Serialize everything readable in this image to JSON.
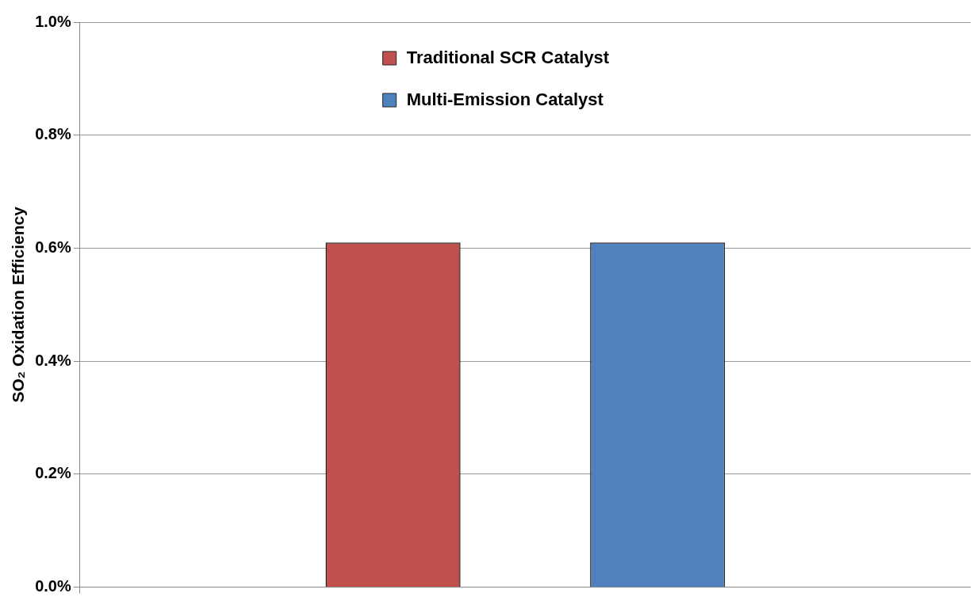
{
  "chart_data": {
    "type": "bar",
    "ylabel": "SO₂ Oxidation Efficiency",
    "categories": [
      null
    ],
    "series": [
      {
        "name": "Traditional SCR Catalyst",
        "color": "#c0504d",
        "values": [
          0.61
        ]
      },
      {
        "name": "Multi-Emission Catalyst",
        "color": "#4f81bd",
        "values": [
          0.61
        ]
      }
    ],
    "ylim": [
      0,
      1
    ],
    "yticks": [
      {
        "value": 0,
        "label": "0.0%"
      },
      {
        "value": 0.2,
        "label": "0.2%"
      },
      {
        "value": 0.4,
        "label": "0.4%"
      },
      {
        "value": 0.6,
        "label": "0.6%"
      },
      {
        "value": 0.8,
        "label": "0.8%"
      },
      {
        "value": 1,
        "label": "1.0%"
      }
    ],
    "grid": "y",
    "legend": "top"
  }
}
